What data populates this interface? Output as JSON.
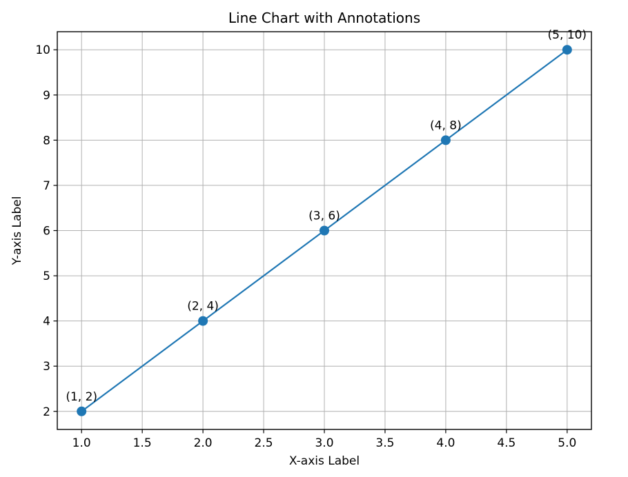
{
  "chart_data": {
    "type": "line",
    "title": "Line Chart with Annotations",
    "xlabel": "X-axis Label",
    "ylabel": "Y-axis Label",
    "x": [
      1,
      2,
      3,
      4,
      5
    ],
    "y": [
      2,
      4,
      6,
      8,
      10
    ],
    "annotations": [
      "(1, 2)",
      "(2, 4)",
      "(3, 6)",
      "(4, 8)",
      "(5, 10)"
    ],
    "x_ticks": [
      1.0,
      1.5,
      2.0,
      2.5,
      3.0,
      3.5,
      4.0,
      4.5,
      5.0
    ],
    "x_tick_labels": [
      "1.0",
      "1.5",
      "2.0",
      "2.5",
      "3.0",
      "3.5",
      "4.0",
      "4.5",
      "5.0"
    ],
    "y_ticks": [
      2,
      3,
      4,
      5,
      6,
      7,
      8,
      9,
      10
    ],
    "y_tick_labels": [
      "2",
      "3",
      "4",
      "5",
      "6",
      "7",
      "8",
      "9",
      "10"
    ],
    "xlim": [
      0.8,
      5.2
    ],
    "ylim": [
      1.6,
      10.4
    ],
    "grid": true,
    "legend_position": "none",
    "line_color": "#1f77b4",
    "marker_color": "#1f77b4",
    "grid_color": "#b0b0b0",
    "spine_color": "#000000",
    "text_color": "#000000",
    "background_color": "#ffffff"
  }
}
